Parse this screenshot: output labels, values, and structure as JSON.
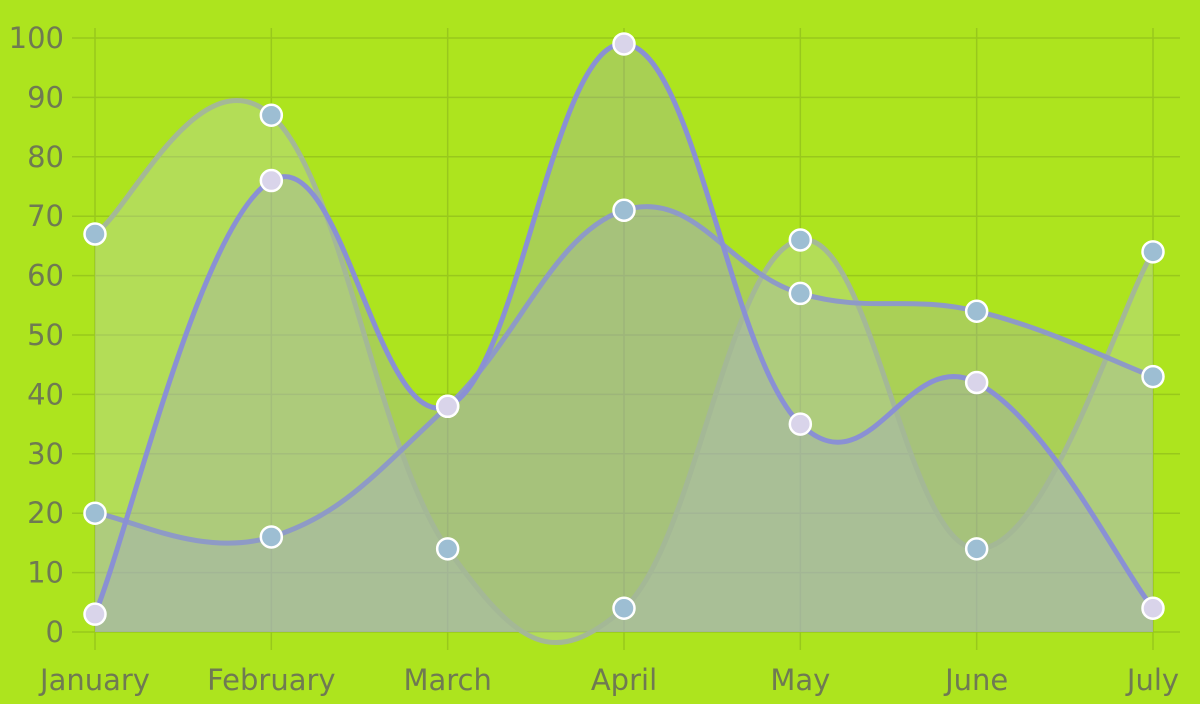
{
  "colors": {
    "background": "#ade41e",
    "grid": "#98c81c",
    "axis_text": "#6f7a52",
    "point_stroke": "#ffffff"
  },
  "chart_data": {
    "type": "area",
    "categories": [
      "January",
      "February",
      "March",
      "April",
      "May",
      "June",
      "July"
    ],
    "ylim": [
      0,
      100
    ],
    "yticks": [
      0,
      10,
      20,
      30,
      40,
      50,
      60,
      70,
      80,
      90,
      100
    ],
    "grid": true,
    "smooth": true,
    "series": [
      {
        "values": [
          67,
          87,
          14,
          4,
          66,
          14,
          64
        ],
        "line_color": "#a4b896",
        "fill_color": "#c0d0c4",
        "fill_opacity": 0.35,
        "point_color": "#9dbed3"
      },
      {
        "values": [
          20,
          16,
          38,
          71,
          57,
          54,
          43
        ],
        "line_color": "#8e9ac6",
        "fill_color": "#a6a8cc",
        "fill_opacity": 0.32,
        "point_color": "#9dbed3"
      },
      {
        "values": [
          3,
          76,
          38,
          99,
          35,
          42,
          4
        ],
        "line_color": "#8a90d4",
        "fill_color": "#9ea2d2",
        "fill_opacity": 0.3,
        "point_color": "#d9d4ea"
      }
    ]
  }
}
